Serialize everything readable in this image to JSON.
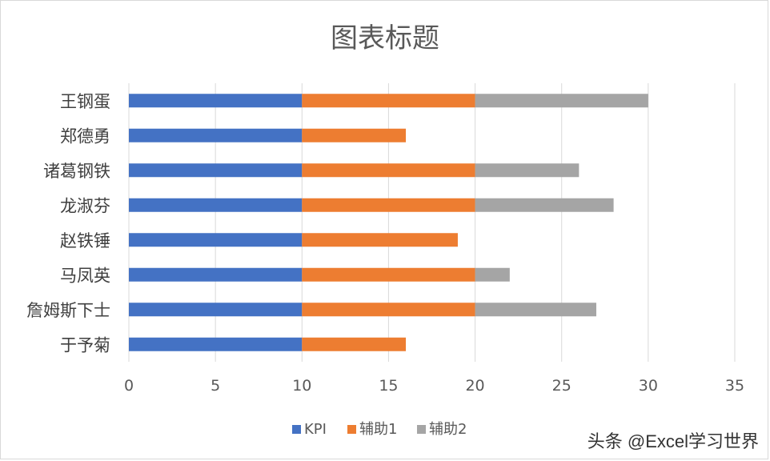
{
  "chart_data": {
    "type": "bar",
    "orientation": "horizontal",
    "stacked": true,
    "title": "图表标题",
    "categories": [
      "王钢蛋",
      "郑德勇",
      "诸葛钢铁",
      "龙淑芬",
      "赵铁锤",
      "马凤英",
      "詹姆斯下士",
      "于予菊"
    ],
    "series": [
      {
        "name": "KPI",
        "color": "#4472C4",
        "values": [
          10,
          10,
          10,
          10,
          10,
          10,
          10,
          10
        ]
      },
      {
        "name": "辅助1",
        "color": "#ED7D31",
        "values": [
          10,
          6,
          10,
          10,
          9,
          10,
          10,
          6
        ]
      },
      {
        "name": "辅助2",
        "color": "#A5A5A5",
        "values": [
          10,
          0,
          6,
          8,
          0,
          2,
          7,
          0
        ]
      }
    ],
    "xlim": [
      0,
      35
    ],
    "xticks": [
      "0",
      "5",
      "10",
      "15",
      "20",
      "25",
      "30",
      "35"
    ],
    "grid": true,
    "legend": "bottom"
  },
  "watermark": "头条 @Excel学习世界"
}
